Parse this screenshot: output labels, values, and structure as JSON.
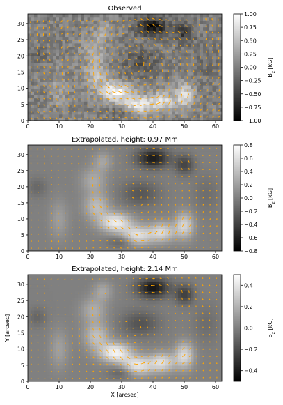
{
  "chart_data": [
    {
      "type": "heatmap",
      "title": "Observed",
      "xlabel": "",
      "ylabel": "",
      "xlim": [
        0,
        62
      ],
      "ylim": [
        0,
        33
      ],
      "xticks": [
        "0",
        "10",
        "20",
        "30",
        "40",
        "50",
        "60"
      ],
      "yticks": [
        "0",
        "5",
        "10",
        "15",
        "20",
        "25",
        "30"
      ],
      "colorbar": {
        "label": "B_z [kG]",
        "range": [
          -1.0,
          1.0
        ],
        "ticks": [
          "1.00",
          "0.75",
          "0.50",
          "0.25",
          "0.00",
          "−0.25",
          "−0.50",
          "−0.75",
          "−1.00"
        ],
        "tick_values": [
          1.0,
          0.75,
          0.5,
          0.25,
          0.0,
          -0.25,
          -0.5,
          -0.75,
          -1.0
        ]
      },
      "vector_color": "#ffa500",
      "colormap": "gray"
    },
    {
      "type": "heatmap",
      "title": "Extrapolated, height: 0.97 Mm",
      "xlabel": "",
      "ylabel": "",
      "xlim": [
        0,
        62
      ],
      "ylim": [
        0,
        33
      ],
      "xticks": [
        "0",
        "10",
        "20",
        "30",
        "40",
        "50",
        "60"
      ],
      "yticks": [
        "0",
        "5",
        "10",
        "15",
        "20",
        "25",
        "30"
      ],
      "colorbar": {
        "label": "B_z [kG]",
        "range": [
          -0.8,
          0.8
        ],
        "ticks": [
          "0.8",
          "0.6",
          "0.4",
          "0.2",
          "0.0",
          "−0.2",
          "−0.4",
          "−0.6",
          "−0.8"
        ],
        "tick_values": [
          0.8,
          0.6,
          0.4,
          0.2,
          0.0,
          -0.2,
          -0.4,
          -0.6,
          -0.8
        ]
      },
      "vector_color": "#ffa500",
      "colormap": "gray"
    },
    {
      "type": "heatmap",
      "title": "Extrapolated, height: 2.14 Mm",
      "xlabel": "X [arcsec]",
      "ylabel": "Y [arcsec]",
      "xlim": [
        0,
        62
      ],
      "ylim": [
        0,
        33
      ],
      "xticks": [
        "0",
        "10",
        "20",
        "30",
        "40",
        "50",
        "60"
      ],
      "yticks": [
        "0",
        "5",
        "10",
        "15",
        "20",
        "25",
        "30"
      ],
      "colorbar": {
        "label": "B_z [kG]",
        "range": [
          -0.5,
          0.5
        ],
        "ticks": [
          "0.4",
          "0.2",
          "0.0",
          "−0.2",
          "−0.4"
        ],
        "tick_values": [
          0.4,
          0.2,
          0.0,
          -0.2,
          -0.4
        ]
      },
      "vector_color": "#ffa500",
      "colormap": "gray"
    }
  ]
}
